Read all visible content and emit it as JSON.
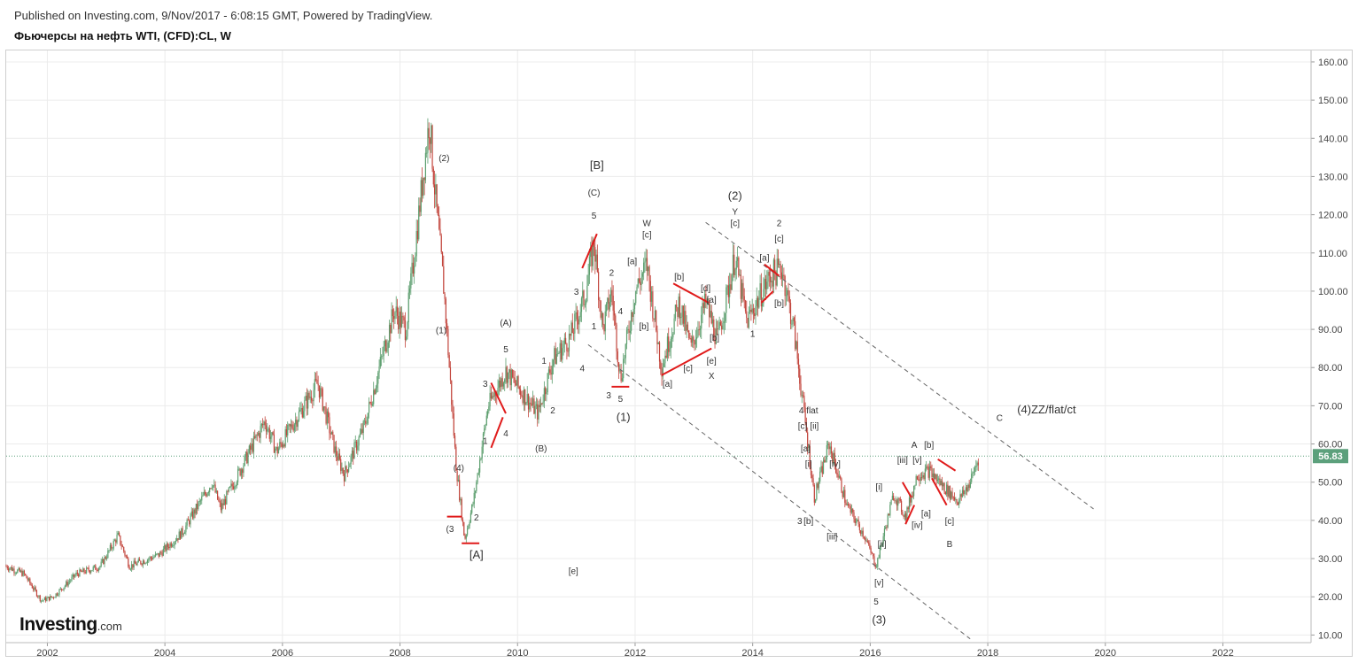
{
  "header": {
    "published": "Published on Investing.com, 9/Nov/2017 - 6:08:15 GMT, Powered by TradingView.",
    "symbol": "Фьючерсы на нефть WTI, (CFD):CL, W"
  },
  "logo": {
    "name": "Investing",
    "suffix": ".com"
  },
  "colors": {
    "up": "#5c9e6e",
    "down": "#c2453c",
    "wave_line": "#e01b1b",
    "price_label_bg": "#5ca07c",
    "grid": "#ececec",
    "channel": "#666666"
  },
  "chart_data": {
    "type": "candlestick",
    "timeframe": "W",
    "xlim": [
      2001.3,
      2023.5
    ],
    "ylim": [
      8,
      163
    ],
    "grid": true,
    "x_ticks": [
      "2002",
      "2004",
      "2006",
      "2008",
      "2010",
      "2012",
      "2014",
      "2016",
      "2018",
      "2020",
      "2022"
    ],
    "y_ticks": [
      "10.00",
      "20.00",
      "30.00",
      "40.00",
      "50.00",
      "60.00",
      "70.00",
      "80.00",
      "90.00",
      "100.00",
      "110.00",
      "120.00",
      "130.00",
      "140.00",
      "150.00",
      "160.00"
    ],
    "last_price": "56.83",
    "price_path": [
      [
        2001.3,
        28
      ],
      [
        2001.6,
        26
      ],
      [
        2001.9,
        19
      ],
      [
        2002.1,
        20
      ],
      [
        2002.5,
        26
      ],
      [
        2002.9,
        28
      ],
      [
        2003.2,
        36
      ],
      [
        2003.4,
        28
      ],
      [
        2003.9,
        31
      ],
      [
        2004.3,
        37
      ],
      [
        2004.8,
        50
      ],
      [
        2004.95,
        43
      ],
      [
        2005.7,
        66
      ],
      [
        2005.9,
        58
      ],
      [
        2006.6,
        76
      ],
      [
        2006.9,
        58
      ],
      [
        2007.05,
        52
      ],
      [
        2007.4,
        65
      ],
      [
        2007.9,
        95
      ],
      [
        2008.1,
        90
      ],
      [
        2008.5,
        145
      ],
      [
        2008.6,
        125
      ],
      [
        2008.75,
        100
      ],
      [
        2008.95,
        55
      ],
      [
        2009.1,
        35
      ],
      [
        2009.25,
        45
      ],
      [
        2009.5,
        70
      ],
      [
        2009.8,
        79
      ],
      [
        2010.35,
        68
      ],
      [
        2010.6,
        82
      ],
      [
        2010.9,
        88
      ],
      [
        2011.15,
        99
      ],
      [
        2011.3,
        113
      ],
      [
        2011.45,
        90
      ],
      [
        2011.6,
        100
      ],
      [
        2011.75,
        77
      ],
      [
        2012.0,
        100
      ],
      [
        2012.2,
        107
      ],
      [
        2012.45,
        80
      ],
      [
        2012.75,
        97
      ],
      [
        2012.95,
        85
      ],
      [
        2013.2,
        97
      ],
      [
        2013.4,
        87
      ],
      [
        2013.7,
        109
      ],
      [
        2013.9,
        92
      ],
      [
        2014.3,
        104
      ],
      [
        2014.5,
        106
      ],
      [
        2014.7,
        90
      ],
      [
        2014.9,
        65
      ],
      [
        2015.05,
        46
      ],
      [
        2015.3,
        60
      ],
      [
        2015.6,
        44
      ],
      [
        2015.9,
        36
      ],
      [
        2016.1,
        28
      ],
      [
        2016.4,
        47
      ],
      [
        2016.6,
        41
      ],
      [
        2016.8,
        52
      ],
      [
        2017.0,
        53
      ],
      [
        2017.3,
        48
      ],
      [
        2017.5,
        45
      ],
      [
        2017.7,
        50
      ],
      [
        2017.85,
        56.8
      ]
    ],
    "channel_lines": [
      {
        "from": [
          2013.2,
          118
        ],
        "to": [
          2019.8,
          43
        ]
      },
      {
        "from": [
          2011.2,
          86
        ],
        "to": [
          2017.7,
          9
        ]
      }
    ],
    "wave_lines": [
      [
        [
          2008.8,
          41
        ],
        [
          2009.05,
          41
        ]
      ],
      [
        [
          2009.05,
          34
        ],
        [
          2009.35,
          34
        ]
      ],
      [
        [
          2009.55,
          59
        ],
        [
          2009.75,
          67
        ]
      ],
      [
        [
          2009.55,
          76
        ],
        [
          2009.8,
          68
        ]
      ],
      [
        [
          2011.1,
          106
        ],
        [
          2011.35,
          115
        ]
      ],
      [
        [
          2011.6,
          75
        ],
        [
          2011.9,
          75
        ]
      ],
      [
        [
          2012.45,
          78
        ],
        [
          2013.3,
          85
        ]
      ],
      [
        [
          2012.65,
          102
        ],
        [
          2013.25,
          97
        ]
      ],
      [
        [
          2014.15,
          97
        ],
        [
          2014.35,
          100
        ]
      ],
      [
        [
          2014.2,
          107
        ],
        [
          2014.45,
          104
        ]
      ],
      [
        [
          2016.6,
          39
        ],
        [
          2016.75,
          44
        ]
      ],
      [
        [
          2016.55,
          50
        ],
        [
          2016.7,
          46
        ]
      ],
      [
        [
          2017.05,
          51
        ],
        [
          2017.3,
          44
        ]
      ],
      [
        [
          2017.15,
          56
        ],
        [
          2017.45,
          53
        ]
      ]
    ],
    "annotations": [
      {
        "t": "(2)",
        "x": 2008.75,
        "y": 134
      },
      {
        "t": "(1)",
        "x": 2008.7,
        "y": 89
      },
      {
        "t": "(4)",
        "x": 2009.0,
        "y": 53
      },
      {
        "t": "(3",
        "x": 2008.85,
        "y": 37
      },
      {
        "t": "2",
        "x": 2009.3,
        "y": 40
      },
      {
        "t": "[A]",
        "x": 2009.3,
        "y": 30,
        "big": true
      },
      {
        "t": "1",
        "x": 2009.45,
        "y": 60
      },
      {
        "t": "3",
        "x": 2009.45,
        "y": 75
      },
      {
        "t": "4",
        "x": 2009.8,
        "y": 62
      },
      {
        "t": "5",
        "x": 2009.8,
        "y": 84
      },
      {
        "t": "(A)",
        "x": 2009.8,
        "y": 91
      },
      {
        "t": "(B)",
        "x": 2010.4,
        "y": 58
      },
      {
        "t": "[e]",
        "x": 2010.95,
        "y": 26
      },
      {
        "t": "1",
        "x": 2010.45,
        "y": 81
      },
      {
        "t": "2",
        "x": 2010.6,
        "y": 68
      },
      {
        "t": "4",
        "x": 2011.1,
        "y": 79
      },
      {
        "t": "3",
        "x": 2011.0,
        "y": 99
      },
      {
        "t": "1",
        "x": 2011.3,
        "y": 90
      },
      {
        "t": "2",
        "x": 2011.6,
        "y": 104
      },
      {
        "t": "4",
        "x": 2011.75,
        "y": 94
      },
      {
        "t": "5",
        "x": 2011.3,
        "y": 119
      },
      {
        "t": "(C)",
        "x": 2011.3,
        "y": 125
      },
      {
        "t": "[B]",
        "x": 2011.35,
        "y": 132,
        "big": true
      },
      {
        "t": "3",
        "x": 2011.55,
        "y": 72
      },
      {
        "t": "5",
        "x": 2011.75,
        "y": 71
      },
      {
        "t": "(1)",
        "x": 2011.8,
        "y": 66,
        "big": true
      },
      {
        "t": "W",
        "x": 2012.2,
        "y": 117
      },
      {
        "t": "[c]",
        "x": 2012.2,
        "y": 114
      },
      {
        "t": "[a]",
        "x": 2011.95,
        "y": 107
      },
      {
        "t": "[b]",
        "x": 2012.15,
        "y": 90
      },
      {
        "t": "[a]",
        "x": 2012.55,
        "y": 75
      },
      {
        "t": "[b]",
        "x": 2012.75,
        "y": 103
      },
      {
        "t": "[c]",
        "x": 2012.9,
        "y": 79
      },
      {
        "t": "[d]",
        "x": 2013.2,
        "y": 100
      },
      {
        "t": "[a]",
        "x": 2013.3,
        "y": 97
      },
      {
        "t": "[b]",
        "x": 2013.35,
        "y": 87
      },
      {
        "t": "[e]",
        "x": 2013.3,
        "y": 81
      },
      {
        "t": "X",
        "x": 2013.3,
        "y": 77
      },
      {
        "t": "(2)",
        "x": 2013.7,
        "y": 124,
        "big": true
      },
      {
        "t": "Y",
        "x": 2013.7,
        "y": 120
      },
      {
        "t": "[c]",
        "x": 2013.7,
        "y": 117
      },
      {
        "t": "2",
        "x": 2014.45,
        "y": 117
      },
      {
        "t": "[c]",
        "x": 2014.45,
        "y": 113
      },
      {
        "t": "[a]",
        "x": 2014.2,
        "y": 108
      },
      {
        "t": "[b]",
        "x": 2014.45,
        "y": 96
      },
      {
        "t": "1",
        "x": 2014.0,
        "y": 88
      },
      {
        "t": "4 flat",
        "x": 2014.95,
        "y": 68
      },
      {
        "t": "[c]",
        "x": 2014.85,
        "y": 64
      },
      {
        "t": "[ii]",
        "x": 2015.05,
        "y": 64
      },
      {
        "t": "[a]",
        "x": 2014.9,
        "y": 58
      },
      {
        "t": "[i]",
        "x": 2014.95,
        "y": 54
      },
      {
        "t": "[iv]",
        "x": 2015.4,
        "y": 54
      },
      {
        "t": "3",
        "x": 2014.8,
        "y": 39
      },
      {
        "t": "[b]",
        "x": 2014.95,
        "y": 39
      },
      {
        "t": "[iii]",
        "x": 2015.35,
        "y": 35
      },
      {
        "t": "[ii]",
        "x": 2016.2,
        "y": 33
      },
      {
        "t": "[v]",
        "x": 2016.15,
        "y": 23
      },
      {
        "t": "5",
        "x": 2016.1,
        "y": 18
      },
      {
        "t": "(3)",
        "x": 2016.15,
        "y": 13,
        "big": true
      },
      {
        "t": "[i]",
        "x": 2016.15,
        "y": 48
      },
      {
        "t": "[iii]",
        "x": 2016.55,
        "y": 55
      },
      {
        "t": "[v]",
        "x": 2016.8,
        "y": 55
      },
      {
        "t": "[iv]",
        "x": 2016.8,
        "y": 38
      },
      {
        "t": "[a]",
        "x": 2016.95,
        "y": 41
      },
      {
        "t": "A",
        "x": 2016.75,
        "y": 59
      },
      {
        "t": "[b]",
        "x": 2017.0,
        "y": 59
      },
      {
        "t": "[c]",
        "x": 2017.35,
        "y": 39
      },
      {
        "t": "B",
        "x": 2017.35,
        "y": 33
      },
      {
        "t": "C",
        "x": 2018.2,
        "y": 66
      },
      {
        "t": "(4)ZZ/flat/ct",
        "x": 2019.0,
        "y": 68,
        "big": true
      }
    ]
  }
}
